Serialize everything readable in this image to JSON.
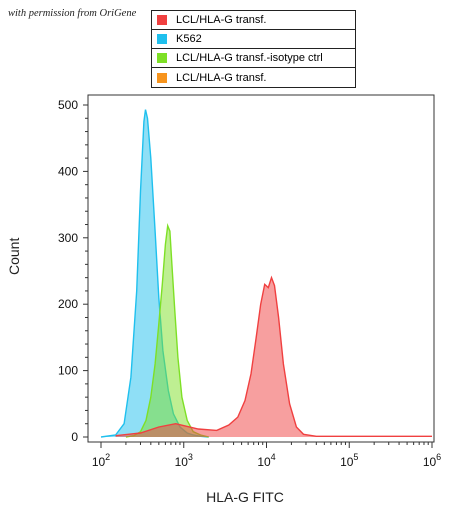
{
  "watermark": "with permission from OriGene",
  "chart_data": {
    "type": "area",
    "xlabel": "HLA-G FITC",
    "ylabel": "Count",
    "x_scale": "log",
    "xlim": [
      100,
      1000000
    ],
    "ylim": [
      0,
      500
    ],
    "y_ticks": [
      0,
      100,
      200,
      300,
      400,
      500
    ],
    "x_ticks": [
      {
        "value": 100,
        "base": "10",
        "exp": "2"
      },
      {
        "value": 1000,
        "base": "10",
        "exp": "3"
      },
      {
        "value": 10000,
        "base": "10",
        "exp": "4"
      },
      {
        "value": 100000,
        "base": "10",
        "exp": "5"
      },
      {
        "value": 1000000,
        "base": "10",
        "exp": "6"
      }
    ],
    "legend": [
      {
        "name": "LCL/HLA-G transf.",
        "color": "#f04040"
      },
      {
        "name": "K562",
        "color": "#1fc0ee"
      },
      {
        "name": "LCL/HLA-G transf.-isotype ctrl",
        "color": "#7ee026"
      },
      {
        "name": "LCL/HLA-G transf.",
        "color": "#f7941d"
      }
    ],
    "series": [
      {
        "name": "K562",
        "color": "#1fc0ee",
        "fill_opacity": 0.5,
        "x": [
          100,
          150,
          190,
          230,
          270,
          300,
          330,
          345,
          365,
          400,
          450,
          500,
          560,
          650,
          750,
          900,
          1100,
          1300,
          1600,
          2000
        ],
        "y": [
          0,
          3,
          20,
          90,
          220,
          370,
          475,
          493,
          480,
          420,
          310,
          210,
          130,
          70,
          35,
          15,
          6,
          3,
          1,
          0
        ]
      },
      {
        "name": "LCL/HLA-G transf.-isotype ctrl",
        "color": "#7ee026",
        "fill_opacity": 0.5,
        "x": [
          200,
          250,
          300,
          350,
          400,
          450,
          500,
          550,
          600,
          640,
          680,
          720,
          780,
          850,
          950,
          1100,
          1300,
          1600,
          2000
        ],
        "y": [
          0,
          2,
          8,
          25,
          60,
          110,
          170,
          230,
          290,
          318,
          310,
          260,
          190,
          120,
          60,
          25,
          8,
          3,
          0
        ]
      },
      {
        "name": "LCL/HLA-G transf.",
        "color": "#f04040",
        "fill_opacity": 0.5,
        "x": [
          150,
          300,
          500,
          800,
          1500,
          2500,
          3500,
          4500,
          5500,
          6500,
          7500,
          8500,
          9500,
          10500,
          11500,
          12500,
          14000,
          16000,
          19000,
          23000,
          28000,
          40000,
          100000,
          1000000
        ],
        "y": [
          2,
          6,
          15,
          20,
          12,
          10,
          18,
          30,
          55,
          95,
          150,
          200,
          230,
          225,
          240,
          228,
          180,
          110,
          50,
          15,
          4,
          1,
          1,
          1
        ]
      },
      {
        "name": "LCL/HLA-G transf.",
        "color": "#f7941d",
        "fill_opacity": 0.0,
        "x": [
          100,
          1000000
        ],
        "y": [
          0,
          0
        ]
      }
    ]
  }
}
